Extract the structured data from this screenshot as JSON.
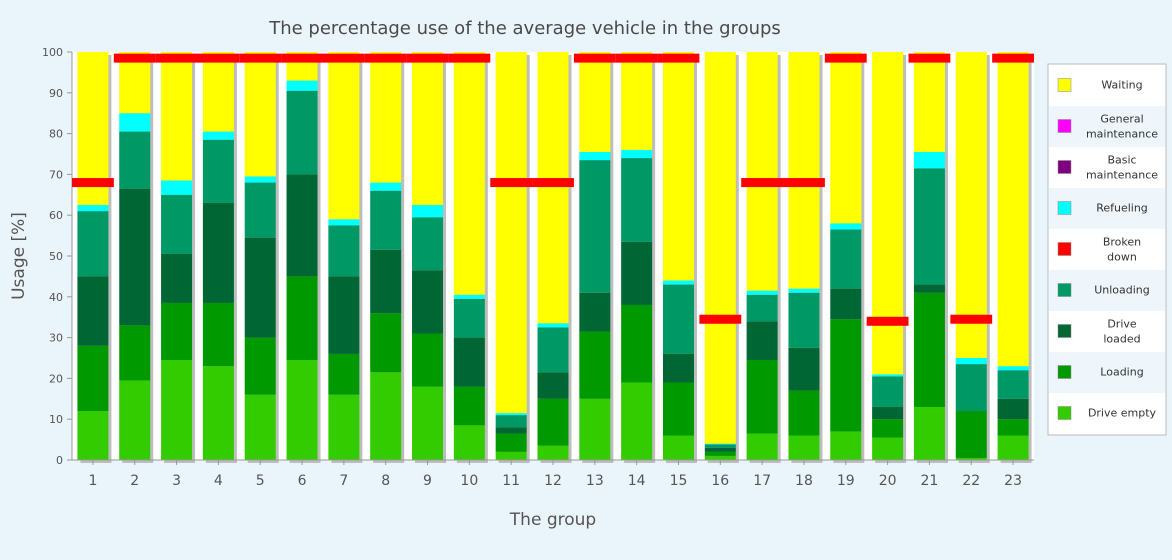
{
  "chart_data": {
    "type": "bar",
    "stacked": true,
    "title": "The percentage use of the average vehicle in the groups",
    "xlabel": "The group",
    "ylabel": "Usage [%]",
    "ylim": [
      0,
      100
    ],
    "yticks": [
      0,
      10,
      20,
      30,
      40,
      50,
      60,
      70,
      80,
      90,
      100
    ],
    "grid": false,
    "legend_position": "right",
    "categories": [
      "1",
      "2",
      "3",
      "4",
      "5",
      "6",
      "7",
      "8",
      "9",
      "10",
      "11",
      "12",
      "13",
      "14",
      "15",
      "16",
      "17",
      "18",
      "19",
      "20",
      "21",
      "22",
      "23"
    ],
    "series": [
      {
        "name": "Drive empty",
        "color": "#33cc00",
        "values": [
          12,
          19.5,
          24.5,
          23,
          16,
          24.5,
          16,
          21.5,
          18,
          8.5,
          2,
          3.5,
          15,
          19,
          6,
          1,
          6.5,
          6,
          7,
          5.5,
          13,
          0.5,
          6
        ]
      },
      {
        "name": "Loading",
        "color": "#009900",
        "values": [
          16,
          13.5,
          14,
          15.5,
          14,
          20.5,
          10,
          14.5,
          13,
          9.5,
          4.5,
          11.5,
          16.5,
          19,
          13,
          1,
          18,
          11,
          27.5,
          4.5,
          28,
          11.5,
          4
        ]
      },
      {
        "name": "Drive loaded",
        "color": "#006633",
        "values": [
          17,
          33.5,
          12,
          24.5,
          24.5,
          25,
          19,
          15.5,
          15.5,
          12,
          1.5,
          6.5,
          9.5,
          15.5,
          7,
          1,
          9.5,
          10.5,
          7.5,
          3,
          2,
          0,
          5
        ]
      },
      {
        "name": "Unloading",
        "color": "#009966",
        "values": [
          16,
          14,
          14.5,
          15.5,
          13.5,
          20.5,
          12.5,
          14.5,
          13,
          9.5,
          3,
          11,
          32.5,
          20.5,
          17,
          0.8,
          6.5,
          13.5,
          14.5,
          7.5,
          28.5,
          11.5,
          7
        ]
      },
      {
        "name": "Broken down",
        "color": "#ff0000",
        "values": [
          0,
          0,
          0,
          0,
          0,
          0,
          0,
          0,
          0,
          0,
          0,
          0,
          0,
          0,
          0,
          0,
          0,
          0,
          0,
          0,
          0,
          0,
          0
        ]
      },
      {
        "name": "Refueling",
        "color": "#00ffff",
        "values": [
          1.5,
          4.5,
          3.5,
          2,
          1.5,
          2.5,
          1.5,
          2,
          3,
          1,
          0.5,
          1,
          2,
          2,
          1,
          0.2,
          1,
          1,
          1.5,
          0.5,
          4,
          1.5,
          1
        ]
      },
      {
        "name": "Basic maintenance",
        "color": "#7f007f",
        "values": [
          0,
          0,
          0,
          0,
          0,
          0,
          0,
          0,
          0,
          0,
          0,
          0,
          0,
          0,
          0,
          0,
          0,
          0,
          0,
          0,
          0,
          0,
          0
        ]
      },
      {
        "name": "General maintenance",
        "color": "#ff00ff",
        "values": [
          0,
          0,
          0,
          0,
          0,
          0,
          0,
          0,
          0,
          0,
          0,
          0,
          0,
          0,
          0,
          0,
          0,
          0,
          0,
          0,
          0,
          0,
          0
        ]
      },
      {
        "name": "Waiting",
        "color": "#ffff00",
        "values": [
          37.5,
          15,
          31.5,
          19.5,
          30.5,
          7,
          41,
          32,
          37.5,
          59.5,
          88.5,
          66.5,
          24.5,
          24,
          56,
          96,
          58.5,
          58,
          42,
          79,
          24.5,
          75,
          77
        ]
      }
    ],
    "markers": {
      "name": "Broken down",
      "color": "#ff0000",
      "values": [
        68,
        98.5,
        98.5,
        98.5,
        98.5,
        98.5,
        98.5,
        98.5,
        98.5,
        98.5,
        68,
        68,
        98.5,
        98.5,
        98.5,
        34.5,
        68,
        68,
        98.5,
        34,
        98.5,
        34.5,
        98.5
      ]
    },
    "legend_order": [
      "Waiting",
      "General maintenance",
      "Basic maintenance",
      "Refueling",
      "Broken down",
      "Unloading",
      "Drive loaded",
      "Loading",
      "Drive empty"
    ],
    "legend_lines": {
      "Waiting": [
        "Waiting"
      ],
      "General maintenance": [
        "General",
        "maintenance"
      ],
      "Basic maintenance": [
        "Basic",
        "maintenance"
      ],
      "Refueling": [
        "Refueling"
      ],
      "Broken down": [
        "Broken",
        "down"
      ],
      "Unloading": [
        "Unloading"
      ],
      "Drive loaded": [
        "Drive",
        "loaded"
      ],
      "Loading": [
        "Loading"
      ],
      "Drive empty": [
        "Drive empty"
      ]
    }
  }
}
